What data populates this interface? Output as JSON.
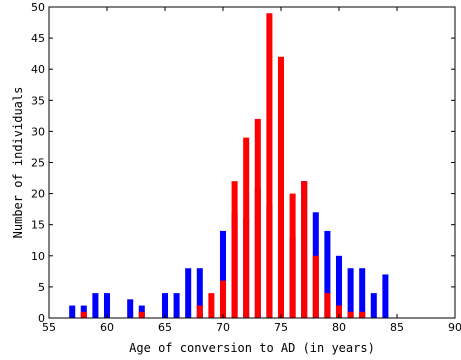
{
  "chart_data": {
    "type": "bar",
    "xlabel": "Age of conversion to AD (in years)",
    "ylabel": "Number of individuals",
    "xlim": [
      55,
      90
    ],
    "ylim": [
      0,
      50
    ],
    "xticks": [
      55,
      60,
      65,
      70,
      75,
      80,
      85,
      90
    ],
    "yticks": [
      0,
      5,
      10,
      15,
      20,
      25,
      30,
      35,
      40,
      45,
      50
    ],
    "grid": false,
    "legend": "none",
    "series": [
      {
        "color": "#0000ff",
        "points": [
          {
            "x": 57,
            "y": 2
          },
          {
            "x": 58,
            "y": 2
          },
          {
            "x": 59,
            "y": 4
          },
          {
            "x": 60,
            "y": 4
          },
          {
            "x": 62,
            "y": 3
          },
          {
            "x": 63,
            "y": 2
          },
          {
            "x": 65,
            "y": 4
          },
          {
            "x": 66,
            "y": 4
          },
          {
            "x": 67,
            "y": 8
          },
          {
            "x": 68,
            "y": 8
          },
          {
            "x": 70,
            "y": 14
          },
          {
            "x": 71,
            "y": 17
          },
          {
            "x": 72,
            "y": 16
          },
          {
            "x": 73,
            "y": 21
          },
          {
            "x": 74,
            "y": 18
          },
          {
            "x": 75,
            "y": 18
          },
          {
            "x": 76,
            "y": 13
          },
          {
            "x": 77,
            "y": 22
          },
          {
            "x": 78,
            "y": 17
          },
          {
            "x": 79,
            "y": 14
          },
          {
            "x": 80,
            "y": 10
          },
          {
            "x": 81,
            "y": 8
          },
          {
            "x": 82,
            "y": 8
          },
          {
            "x": 83,
            "y": 4
          },
          {
            "x": 84,
            "y": 7
          }
        ]
      },
      {
        "color": "#ff0000",
        "points": [
          {
            "x": 58,
            "y": 1
          },
          {
            "x": 63,
            "y": 1
          },
          {
            "x": 68,
            "y": 2
          },
          {
            "x": 69,
            "y": 4
          },
          {
            "x": 70,
            "y": 6
          },
          {
            "x": 71,
            "y": 22
          },
          {
            "x": 72,
            "y": 29
          },
          {
            "x": 73,
            "y": 32
          },
          {
            "x": 74,
            "y": 49
          },
          {
            "x": 75,
            "y": 42
          },
          {
            "x": 76,
            "y": 20
          },
          {
            "x": 77,
            "y": 22
          },
          {
            "x": 78,
            "y": 10
          },
          {
            "x": 79,
            "y": 4
          },
          {
            "x": 80,
            "y": 2
          },
          {
            "x": 81,
            "y": 1
          },
          {
            "x": 82,
            "y": 1
          }
        ]
      }
    ]
  }
}
